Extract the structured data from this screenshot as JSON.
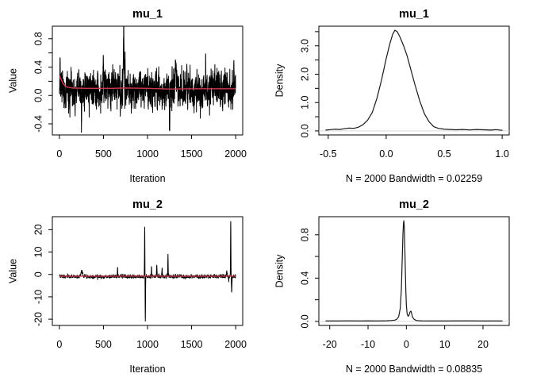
{
  "figure": {
    "kind": "mcmc-trace-and-density-diagnostics",
    "background": "#ffffff"
  },
  "colors": {
    "text": "#000000",
    "box": "#000000",
    "trace": "#000000",
    "density": "#1a1a1a",
    "mean_line": "#cc3a4e",
    "zero_line": "#d9d9d9"
  },
  "chart_data": [
    {
      "id": "trace-mu-1",
      "type": "line",
      "kind": "trace",
      "title": "mu_1",
      "xlabel": "Iteration",
      "ylabel": "Value",
      "xlim": [
        0,
        2000
      ],
      "ylim": [
        -0.5,
        0.92
      ],
      "xticks": [
        0,
        500,
        1000,
        1500,
        2000
      ],
      "xtick_labels": [
        "0",
        "500",
        "1000",
        "1500",
        "2000"
      ],
      "yticks": [
        -0.4,
        -0.2,
        0,
        0.2,
        0.4,
        0.6,
        0.8
      ],
      "ytick_labels": [
        "-0.4",
        "",
        "0.0",
        "",
        "0.4",
        "",
        "0.8"
      ],
      "grid": false,
      "legend": null,
      "trace": {
        "n": 2000,
        "seed": 20,
        "baseline": 0.08,
        "phi": 0.5,
        "innov_sd": 0.11,
        "spikes": [
          [
            8,
            3,
            0.46
          ],
          [
            250,
            4,
            -0.46
          ],
          [
            500,
            5,
            0.45
          ],
          [
            730,
            9,
            0.91
          ],
          [
            745,
            4,
            0.5
          ],
          [
            1250,
            7,
            -0.52
          ],
          [
            1320,
            12,
            0.42
          ],
          [
            1660,
            4,
            0.47
          ],
          [
            1980,
            4,
            0.35
          ]
        ]
      },
      "mean_line": [
        [
          1,
          0.28
        ],
        [
          40,
          0.17
        ],
        [
          80,
          0.12
        ],
        [
          150,
          0.105
        ],
        [
          300,
          0.1
        ],
        [
          600,
          0.1
        ],
        [
          750,
          0.105
        ],
        [
          1000,
          0.1
        ],
        [
          1250,
          0.09
        ],
        [
          1500,
          0.095
        ],
        [
          2000,
          0.095
        ]
      ]
    },
    {
      "id": "density-mu-1",
      "type": "line",
      "kind": "density",
      "title": "mu_1",
      "xlabel": "N = 2000   Bandwidth = 0.02259",
      "ylabel": "Density",
      "xlim": [
        -0.52,
        1.0
      ],
      "ylim": [
        0,
        3.55
      ],
      "xticks": [
        -0.5,
        0,
        0.5,
        1
      ],
      "xtick_labels": [
        "-0.5",
        "0.0",
        "0.5",
        "1.0"
      ],
      "yticks": [
        0,
        0.5,
        1,
        1.5,
        2,
        2.5,
        3,
        3.5
      ],
      "ytick_labels": [
        "0.0",
        "",
        "1.0",
        "",
        "2.0",
        "",
        "3.0",
        ""
      ],
      "grid": false,
      "legend": null,
      "zero_line": true,
      "points": [
        [
          -0.52,
          0.03
        ],
        [
          -0.48,
          0.045
        ],
        [
          -0.44,
          0.06
        ],
        [
          -0.4,
          0.05
        ],
        [
          -0.36,
          0.08
        ],
        [
          -0.32,
          0.1
        ],
        [
          -0.28,
          0.09
        ],
        [
          -0.24,
          0.13
        ],
        [
          -0.2,
          0.22
        ],
        [
          -0.16,
          0.38
        ],
        [
          -0.12,
          0.65
        ],
        [
          -0.08,
          1.15
        ],
        [
          -0.04,
          1.8
        ],
        [
          0,
          2.55
        ],
        [
          0.03,
          3.05
        ],
        [
          0.055,
          3.4
        ],
        [
          0.075,
          3.55
        ],
        [
          0.095,
          3.5
        ],
        [
          0.12,
          3.3
        ],
        [
          0.15,
          3.0
        ],
        [
          0.18,
          2.65
        ],
        [
          0.21,
          2.2
        ],
        [
          0.25,
          1.6
        ],
        [
          0.29,
          1.05
        ],
        [
          0.33,
          0.6
        ],
        [
          0.37,
          0.32
        ],
        [
          0.41,
          0.15
        ],
        [
          0.45,
          0.09
        ],
        [
          0.5,
          0.06
        ],
        [
          0.55,
          0.05
        ],
        [
          0.6,
          0.04
        ],
        [
          0.66,
          0.05
        ],
        [
          0.72,
          0.035
        ],
        [
          0.78,
          0.05
        ],
        [
          0.84,
          0.04
        ],
        [
          0.9,
          0.03
        ],
        [
          0.95,
          0.045
        ],
        [
          1.0,
          0.02
        ]
      ]
    },
    {
      "id": "trace-mu-2",
      "type": "line",
      "kind": "trace",
      "title": "mu_2",
      "xlabel": "Iteration",
      "ylabel": "Value",
      "xlim": [
        0,
        2000
      ],
      "ylim": [
        -21,
        24
      ],
      "xticks": [
        0,
        500,
        1000,
        1500,
        2000
      ],
      "xtick_labels": [
        "0",
        "500",
        "1000",
        "1500",
        "2000"
      ],
      "yticks": [
        -20,
        -10,
        0,
        10,
        20
      ],
      "ytick_labels": [
        "-20",
        "-10",
        "0",
        "10",
        "20"
      ],
      "grid": false,
      "legend": null,
      "trace": {
        "n": 2000,
        "seed": 7,
        "baseline": -0.9,
        "phi": 0.45,
        "innov_sd": 0.33,
        "spikes": [
          [
            255,
            20,
            1.5
          ],
          [
            660,
            4,
            3.2
          ],
          [
            968,
            4,
            21.5
          ],
          [
            975,
            4,
            -21
          ],
          [
            1045,
            4,
            2.6
          ],
          [
            1105,
            5,
            4.2
          ],
          [
            1165,
            4,
            2.4
          ],
          [
            1232,
            4,
            9
          ],
          [
            1900,
            7,
            1.8
          ],
          [
            1922,
            5,
            -2.6
          ],
          [
            1944,
            4,
            24
          ],
          [
            1955,
            5,
            -8
          ]
        ]
      },
      "mean_line": [
        [
          1,
          -0.85
        ],
        [
          100,
          -0.82
        ],
        [
          300,
          -0.8
        ],
        [
          600,
          -0.78
        ],
        [
          970,
          -0.75
        ],
        [
          1200,
          -0.78
        ],
        [
          1500,
          -0.8
        ],
        [
          1800,
          -0.78
        ],
        [
          2000,
          -0.75
        ]
      ]
    },
    {
      "id": "density-mu-2",
      "type": "line",
      "kind": "density",
      "title": "mu_2",
      "xlabel": "N = 2000   Bandwidth = 0.08835",
      "ylabel": "Density",
      "xlim": [
        -21,
        25
      ],
      "ylim": [
        0,
        0.93
      ],
      "xticks": [
        -20,
        -10,
        0,
        10,
        20
      ],
      "xtick_labels": [
        "-20",
        "-10",
        "0",
        "10",
        "20"
      ],
      "yticks": [
        0,
        0.2,
        0.4,
        0.6,
        0.8
      ],
      "ytick_labels": [
        "0.0",
        "",
        "0.4",
        "",
        "0.8"
      ],
      "grid": false,
      "legend": null,
      "zero_line": true,
      "points": [
        [
          -21,
          0.004
        ],
        [
          -18,
          0.004
        ],
        [
          -15,
          0.005
        ],
        [
          -12,
          0.004
        ],
        [
          -10,
          0.005
        ],
        [
          -8,
          0.004
        ],
        [
          -6,
          0.005
        ],
        [
          -5,
          0.006
        ],
        [
          -4,
          0.008
        ],
        [
          -3,
          0.012
        ],
        [
          -2.5,
          0.02
        ],
        [
          -2,
          0.045
        ],
        [
          -1.6,
          0.12
        ],
        [
          -1.3,
          0.3
        ],
        [
          -1.1,
          0.55
        ],
        [
          -0.9,
          0.8
        ],
        [
          -0.75,
          0.91
        ],
        [
          -0.65,
          0.93
        ],
        [
          -0.55,
          0.88
        ],
        [
          -0.45,
          0.75
        ],
        [
          -0.3,
          0.52
        ],
        [
          -0.15,
          0.3
        ],
        [
          0,
          0.15
        ],
        [
          0.2,
          0.07
        ],
        [
          0.4,
          0.05
        ],
        [
          0.6,
          0.05
        ],
        [
          0.8,
          0.07
        ],
        [
          1.0,
          0.09
        ],
        [
          1.2,
          0.095
        ],
        [
          1.4,
          0.07
        ],
        [
          1.6,
          0.04
        ],
        [
          2,
          0.02
        ],
        [
          2.5,
          0.01
        ],
        [
          3,
          0.007
        ],
        [
          4,
          0.005
        ],
        [
          6,
          0.004
        ],
        [
          10,
          0.004
        ],
        [
          15,
          0.005
        ],
        [
          20,
          0.004
        ],
        [
          25,
          0.004
        ]
      ]
    }
  ]
}
